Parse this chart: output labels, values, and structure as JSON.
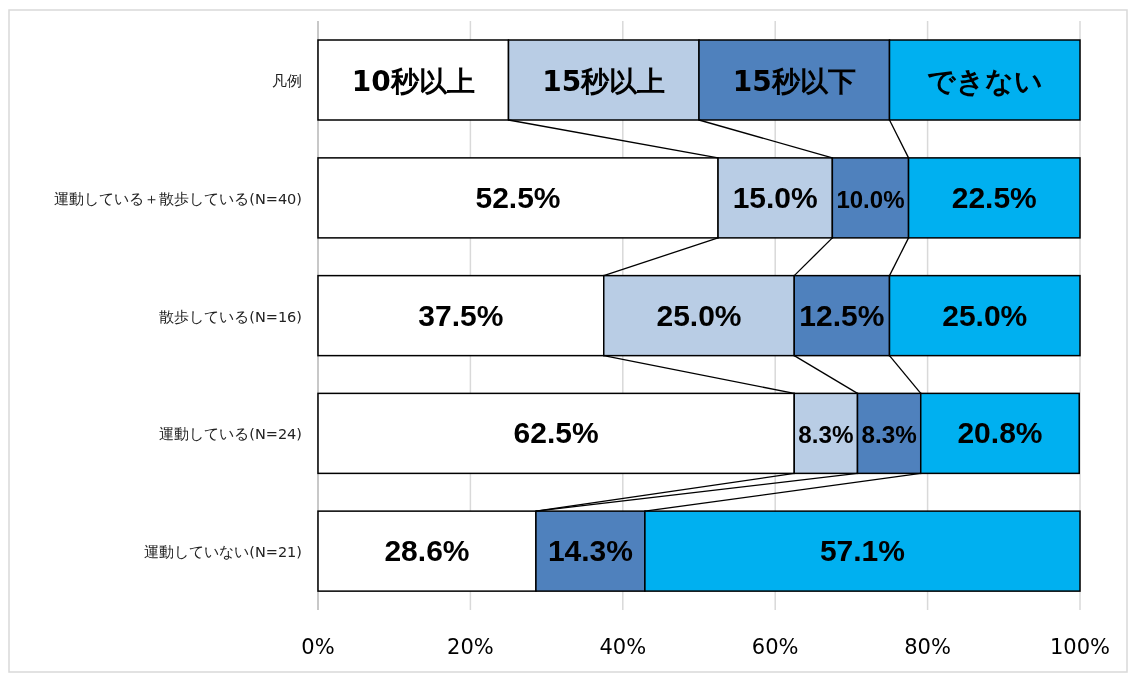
{
  "chart_data": {
    "type": "bar",
    "orientation": "horizontal",
    "stacked": true,
    "legend": "top",
    "legend_title": "凡例",
    "categories": [
      "運動している＋散歩している(N=40)",
      "散歩している(N=16)",
      "運動している(N=24)",
      "運動していない(N=21)"
    ],
    "series": [
      {
        "name": "10秒以上",
        "color": "#ffffff",
        "values": [
          52.5,
          37.5,
          62.5,
          28.6
        ],
        "value_labels": [
          "52.5%",
          "37.5%",
          "62.5%",
          "28.6%"
        ]
      },
      {
        "name": "15秒以上",
        "color": "#b9cde5",
        "values": [
          15.0,
          25.0,
          8.3,
          0
        ],
        "value_labels": [
          "15.0%",
          "25.0%",
          "8.3%",
          null
        ]
      },
      {
        "name": "15秒以下",
        "color": "#4f81bd",
        "values": [
          10.0,
          12.5,
          8.3,
          14.3
        ],
        "value_labels": [
          "10.0%",
          "12.5%",
          "8.3%",
          "14.3%"
        ]
      },
      {
        "name": "できない",
        "color": "#00b0f0",
        "values": [
          22.5,
          25.0,
          20.8,
          57.1
        ],
        "value_labels": [
          "22.5%",
          "25.0%",
          "20.8%",
          "57.1%"
        ]
      }
    ],
    "xlim": [
      0,
      100
    ],
    "xticks": [
      {
        "value": 0,
        "label": "0%"
      },
      {
        "value": 20,
        "label": "20%"
      },
      {
        "value": 40,
        "label": "40%"
      },
      {
        "value": 60,
        "label": "60%"
      },
      {
        "value": 80,
        "label": "80%"
      },
      {
        "value": 100,
        "label": "100%"
      }
    ],
    "grid": "x"
  }
}
